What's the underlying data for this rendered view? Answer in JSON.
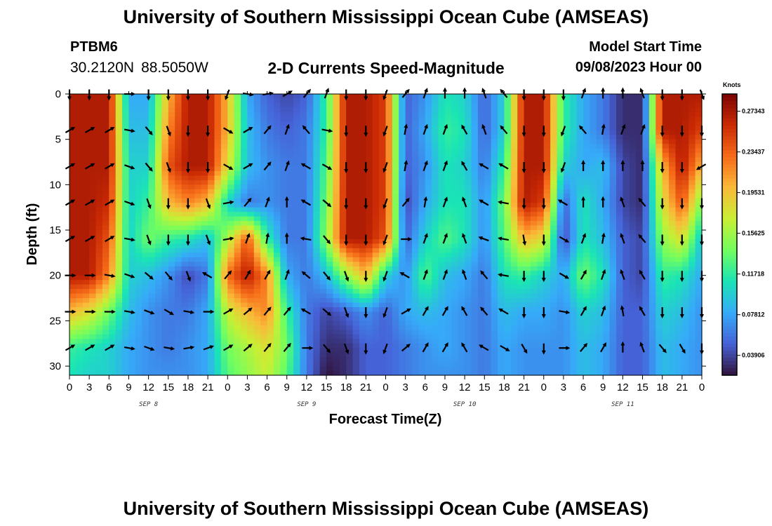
{
  "title": "University of Southern Mississippi Ocean Cube (AMSEAS)",
  "station": {
    "name": "PTBM6",
    "lat": "30.2120N",
    "lon": "88.5050W"
  },
  "model_start": {
    "label": "Model Start Time",
    "value": "09/08/2023 Hour 00"
  },
  "colors": {
    "colormap": [
      "#30123b",
      "#4662d7",
      "#36aaf9",
      "#1ae4b6",
      "#72fe5e",
      "#c8ef34",
      "#faba39",
      "#f66b19",
      "#ca2a04",
      "#7a0403"
    ]
  },
  "chart_data": {
    "type": "heatmap",
    "title": "2-D Currents Speed-Magnitude",
    "xlabel": "Forecast Time(Z)",
    "ylabel": "Depth (ft)",
    "x_range_hours": [
      0,
      96
    ],
    "x_tick_labels": [
      "0",
      "3",
      "6",
      "9",
      "12",
      "15",
      "18",
      "21",
      "0",
      "3",
      "6",
      "9",
      "12",
      "15",
      "18",
      "21",
      "0",
      "3",
      "6",
      "9",
      "12",
      "15",
      "18",
      "21",
      "0",
      "3",
      "6",
      "9",
      "12",
      "15",
      "18",
      "21",
      "0"
    ],
    "day_labels": [
      {
        "label": "SEP 8",
        "hour": 12
      },
      {
        "label": "SEP 9",
        "hour": 36
      },
      {
        "label": "SEP 10",
        "hour": 60
      },
      {
        "label": "SEP 11",
        "hour": 84
      }
    ],
    "y_range_ft": [
      0,
      31
    ],
    "y_ticks": [
      0,
      5,
      10,
      15,
      20,
      25,
      30
    ],
    "colorbar": {
      "unit": "Knots",
      "range": [
        0.02,
        0.29
      ],
      "tick_values": [
        0.27343,
        0.23437,
        0.19531,
        0.15625,
        0.11718,
        0.07812,
        0.03906
      ],
      "tick_labels": [
        "0.27343",
        "0.23437",
        "0.19531",
        "0.15625",
        "0.11718",
        "0.07812",
        "0.03906"
      ]
    },
    "hours": [
      0,
      3,
      6,
      9,
      12,
      15,
      18,
      21,
      24,
      27,
      30,
      33,
      36,
      39,
      42,
      45,
      48,
      51,
      54,
      57,
      60,
      63,
      66,
      69,
      72,
      75,
      78,
      81,
      84,
      87,
      90,
      93,
      96
    ],
    "depths_ft": [
      0,
      4,
      8,
      12,
      16,
      20,
      24,
      28,
      31
    ],
    "speed_knots": [
      [
        0.27,
        0.27,
        0.27,
        0.08,
        0.08,
        0.2,
        0.27,
        0.27,
        0.2,
        0.08,
        0.05,
        0.04,
        0.05,
        0.12,
        0.27,
        0.27,
        0.25,
        0.05,
        0.07,
        0.11,
        0.1,
        0.05,
        0.1,
        0.27,
        0.27,
        0.12,
        0.08,
        0.06,
        0.03,
        0.03,
        0.27,
        0.27,
        0.27
      ],
      [
        0.27,
        0.27,
        0.27,
        0.09,
        0.09,
        0.22,
        0.27,
        0.27,
        0.2,
        0.09,
        0.06,
        0.05,
        0.06,
        0.12,
        0.27,
        0.27,
        0.25,
        0.05,
        0.08,
        0.12,
        0.11,
        0.05,
        0.1,
        0.27,
        0.27,
        0.12,
        0.08,
        0.06,
        0.03,
        0.03,
        0.27,
        0.27,
        0.25
      ],
      [
        0.27,
        0.27,
        0.27,
        0.1,
        0.1,
        0.24,
        0.27,
        0.27,
        0.18,
        0.09,
        0.07,
        0.06,
        0.06,
        0.13,
        0.27,
        0.27,
        0.25,
        0.05,
        0.07,
        0.11,
        0.1,
        0.06,
        0.12,
        0.27,
        0.27,
        0.1,
        0.08,
        0.09,
        0.04,
        0.03,
        0.2,
        0.27,
        0.2
      ],
      [
        0.27,
        0.27,
        0.26,
        0.1,
        0.12,
        0.2,
        0.22,
        0.2,
        0.1,
        0.06,
        0.07,
        0.06,
        0.06,
        0.14,
        0.27,
        0.27,
        0.25,
        0.04,
        0.08,
        0.11,
        0.11,
        0.07,
        0.14,
        0.27,
        0.25,
        0.05,
        0.11,
        0.08,
        0.04,
        0.03,
        0.18,
        0.24,
        0.14
      ],
      [
        0.27,
        0.27,
        0.24,
        0.1,
        0.14,
        0.12,
        0.11,
        0.09,
        0.16,
        0.24,
        0.12,
        0.06,
        0.06,
        0.15,
        0.27,
        0.27,
        0.24,
        0.05,
        0.1,
        0.13,
        0.11,
        0.07,
        0.13,
        0.2,
        0.18,
        0.04,
        0.11,
        0.09,
        0.05,
        0.04,
        0.15,
        0.18,
        0.09
      ],
      [
        0.27,
        0.27,
        0.22,
        0.1,
        0.09,
        0.07,
        0.04,
        0.06,
        0.23,
        0.27,
        0.22,
        0.08,
        0.06,
        0.09,
        0.15,
        0.2,
        0.1,
        0.07,
        0.13,
        0.09,
        0.08,
        0.06,
        0.11,
        0.12,
        0.1,
        0.08,
        0.14,
        0.11,
        0.05,
        0.04,
        0.12,
        0.11,
        0.08
      ],
      [
        0.2,
        0.18,
        0.14,
        0.09,
        0.07,
        0.06,
        0.06,
        0.08,
        0.17,
        0.2,
        0.22,
        0.12,
        0.06,
        0.04,
        0.05,
        0.07,
        0.05,
        0.08,
        0.09,
        0.08,
        0.07,
        0.06,
        0.09,
        0.08,
        0.08,
        0.07,
        0.1,
        0.09,
        0.05,
        0.05,
        0.1,
        0.09,
        0.07
      ],
      [
        0.12,
        0.11,
        0.1,
        0.08,
        0.07,
        0.06,
        0.07,
        0.08,
        0.14,
        0.16,
        0.18,
        0.14,
        0.06,
        0.03,
        0.03,
        0.05,
        0.05,
        0.06,
        0.07,
        0.08,
        0.07,
        0.06,
        0.08,
        0.07,
        0.07,
        0.07,
        0.09,
        0.08,
        0.05,
        0.05,
        0.09,
        0.08,
        0.07
      ],
      [
        0.11,
        0.1,
        0.1,
        0.08,
        0.07,
        0.07,
        0.07,
        0.08,
        0.13,
        0.15,
        0.17,
        0.13,
        0.06,
        0.02,
        0.03,
        0.05,
        0.05,
        0.06,
        0.07,
        0.07,
        0.07,
        0.06,
        0.08,
        0.07,
        0.07,
        0.07,
        0.09,
        0.08,
        0.05,
        0.05,
        0.09,
        0.08,
        0.07
      ]
    ],
    "vector_depths_ft": [
      0,
      4,
      8,
      12,
      16,
      20,
      24,
      28
    ],
    "direction_deg": [
      [
        180,
        180,
        180,
        90,
        180,
        180,
        180,
        180,
        200,
        100,
        80,
        60,
        40,
        20,
        180,
        180,
        200,
        40,
        20,
        0,
        0,
        340,
        320,
        180,
        180,
        180,
        20,
        0,
        0,
        340,
        180,
        180,
        160
      ],
      [
        60,
        60,
        60,
        100,
        140,
        160,
        180,
        180,
        120,
        60,
        40,
        20,
        320,
        100,
        180,
        180,
        200,
        10,
        20,
        20,
        330,
        340,
        320,
        180,
        180,
        200,
        320,
        10,
        20,
        20,
        180,
        180,
        180
      ],
      [
        60,
        60,
        60,
        110,
        140,
        160,
        180,
        180,
        120,
        60,
        40,
        20,
        300,
        120,
        180,
        180,
        200,
        10,
        20,
        20,
        330,
        300,
        300,
        180,
        180,
        200,
        0,
        0,
        0,
        0,
        180,
        180,
        240
      ],
      [
        60,
        60,
        60,
        110,
        160,
        180,
        180,
        160,
        80,
        40,
        20,
        0,
        300,
        130,
        180,
        180,
        200,
        40,
        10,
        20,
        340,
        300,
        280,
        180,
        180,
        300,
        0,
        0,
        340,
        320,
        180,
        180,
        180
      ],
      [
        60,
        60,
        60,
        100,
        160,
        180,
        180,
        160,
        80,
        20,
        10,
        0,
        280,
        140,
        180,
        180,
        200,
        90,
        20,
        20,
        340,
        290,
        280,
        170,
        180,
        120,
        20,
        10,
        340,
        320,
        180,
        180,
        180
      ],
      [
        90,
        90,
        100,
        110,
        130,
        140,
        160,
        300,
        40,
        30,
        30,
        20,
        310,
        140,
        160,
        180,
        200,
        300,
        20,
        20,
        340,
        320,
        280,
        180,
        180,
        120,
        30,
        20,
        340,
        330,
        180,
        180,
        180
      ],
      [
        90,
        90,
        90,
        100,
        110,
        120,
        100,
        90,
        60,
        50,
        40,
        40,
        300,
        130,
        160,
        180,
        200,
        60,
        30,
        30,
        330,
        320,
        300,
        180,
        180,
        100,
        30,
        20,
        350,
        330,
        180,
        180,
        180
      ],
      [
        60,
        60,
        60,
        100,
        110,
        100,
        80,
        70,
        60,
        50,
        40,
        40,
        90,
        140,
        160,
        180,
        200,
        50,
        30,
        30,
        330,
        300,
        120,
        150,
        180,
        90,
        40,
        30,
        0,
        340,
        140,
        150,
        180
      ]
    ]
  }
}
